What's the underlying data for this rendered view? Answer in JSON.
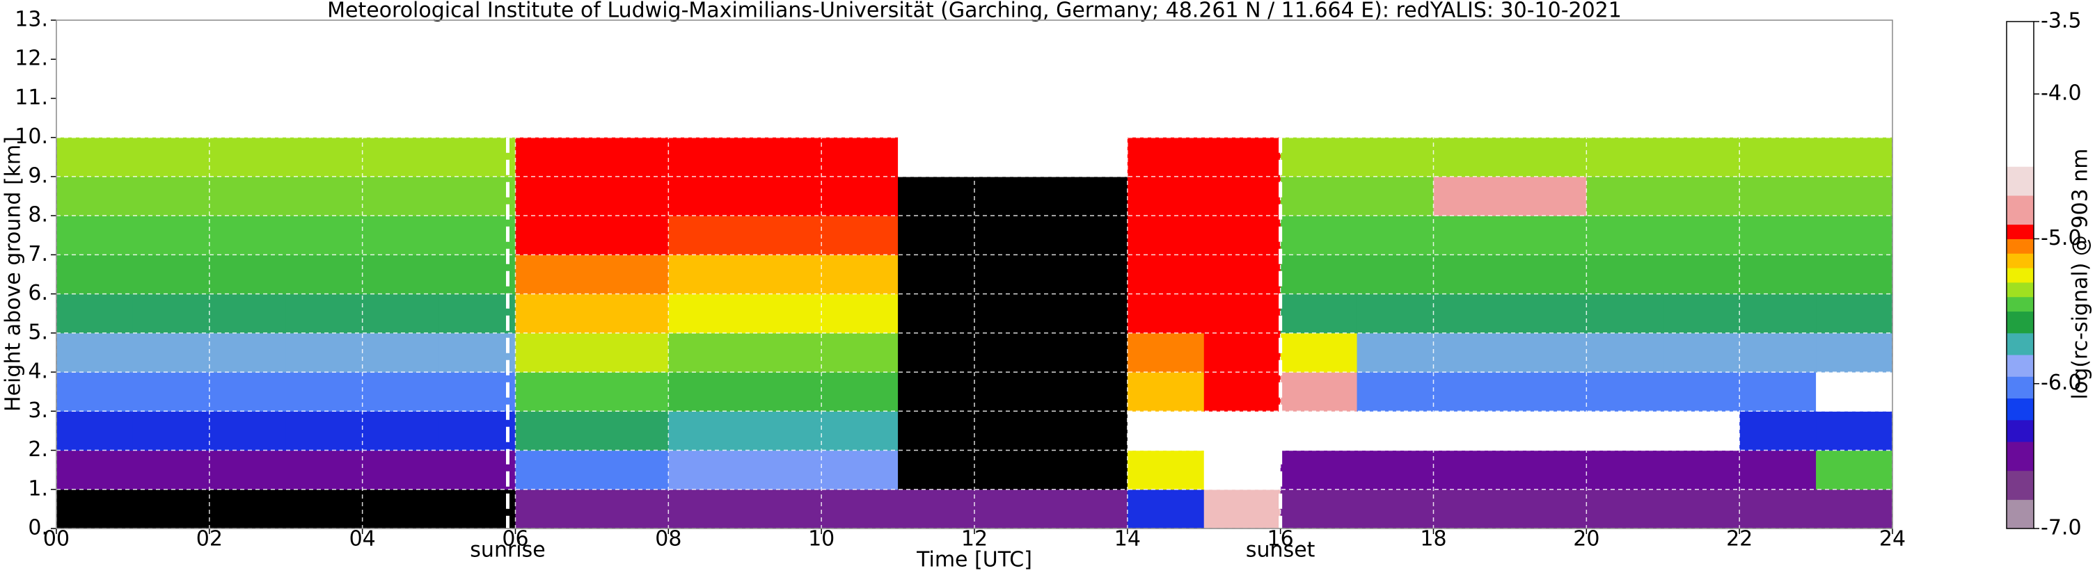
{
  "chart_data": {
    "type": "heatmap",
    "title": "Meteorological Institute of Ludwig-Maximilians-Universität (Garching, Germany; 48.261 N / 11.664 E):    redYALIS: 30-10-2021",
    "xlabel": "Time [UTC]",
    "ylabel": "Height above ground [km]",
    "colorbar_label": "log(rc-signal) @ 903 nm",
    "xlim": [
      0,
      24
    ],
    "ylim": [
      0,
      13
    ],
    "xticks": [
      {
        "value": 0,
        "label": "00"
      },
      {
        "value": 2,
        "label": "02"
      },
      {
        "value": 4,
        "label": "04"
      },
      {
        "value": 6,
        "label": "06"
      },
      {
        "value": 8,
        "label": "08"
      },
      10,
      12,
      14,
      16,
      18,
      20,
      22,
      24
    ],
    "yticks": [
      {
        "value": 0,
        "label": "0."
      },
      {
        "value": 1,
        "label": "1."
      },
      {
        "value": 2,
        "label": "2."
      },
      {
        "value": 3,
        "label": "3."
      },
      {
        "value": 4,
        "label": "4."
      },
      {
        "value": 5,
        "label": "5."
      },
      {
        "value": 6,
        "label": "6."
      },
      {
        "value": 7,
        "label": "7."
      },
      {
        "value": 8,
        "label": "8."
      },
      {
        "value": 9,
        "label": "9."
      },
      {
        "value": 10,
        "label": "10."
      },
      {
        "value": 11,
        "label": "11."
      },
      {
        "value": 12,
        "label": "12."
      },
      {
        "value": 13,
        "label": "13."
      }
    ],
    "grid": true,
    "xbins": [
      0,
      1,
      2,
      3,
      4,
      5,
      6,
      7,
      8,
      9,
      10,
      11,
      12,
      13,
      14,
      15,
      16,
      17,
      18,
      19,
      20,
      21,
      22,
      23,
      24
    ],
    "ybins": [
      0,
      1,
      2,
      3,
      4,
      5,
      6,
      7,
      8,
      9,
      10
    ],
    "z": [
      [
        -7.2,
        -7.2,
        -7.2,
        -7.2,
        -7.2,
        -7.2,
        -6.7,
        -6.7,
        -6.7,
        -6.7,
        -6.7,
        -6.7,
        -6.7,
        -6.7,
        -6.3,
        -4.8,
        -6.7,
        -6.7,
        -6.7,
        -6.7,
        -6.7,
        -6.7,
        -6.7,
        -6.7
      ],
      [
        -6.6,
        -6.6,
        -6.6,
        -6.6,
        -6.6,
        -6.6,
        -6.1,
        -6.1,
        -6.0,
        -6.0,
        -6.0,
        -7.1,
        -7.1,
        -7.1,
        -5.3,
        -4.5,
        -6.6,
        -6.6,
        -6.6,
        -6.6,
        -6.6,
        -6.6,
        -6.6,
        -5.5
      ],
      [
        -6.3,
        -6.3,
        -6.3,
        -6.3,
        -6.3,
        -6.3,
        -5.7,
        -5.7,
        -5.8,
        -5.8,
        -5.8,
        -7.1,
        -7.1,
        -7.1,
        -4.0,
        -4.0,
        -4.0,
        -4.0,
        -4.0,
        -4.0,
        -4.0,
        -4.0,
        -6.3,
        -6.3
      ],
      [
        -6.1,
        -6.1,
        -6.1,
        -6.1,
        -6.1,
        -6.1,
        -5.5,
        -5.5,
        -5.55,
        -5.55,
        -5.55,
        -7.1,
        -7.1,
        -7.1,
        -5.2,
        -5.0,
        -4.9,
        -6.1,
        -6.1,
        -6.1,
        -6.1,
        -6.1,
        -6.1,
        -4.0
      ],
      [
        -5.9,
        -5.9,
        -5.9,
        -5.9,
        -5.9,
        -5.9,
        -5.35,
        -5.35,
        -5.45,
        -5.45,
        -5.45,
        -7.1,
        -7.1,
        -7.1,
        -5.1,
        -5.0,
        -5.3,
        -5.9,
        -5.9,
        -5.9,
        -5.9,
        -5.9,
        -5.9,
        -5.9
      ],
      [
        -5.7,
        -5.7,
        -5.7,
        -5.7,
        -5.7,
        -5.7,
        -5.2,
        -5.2,
        -5.3,
        -5.3,
        -5.3,
        -7.1,
        -7.1,
        -7.1,
        -5.0,
        -5.0,
        -5.7,
        -5.7,
        -5.7,
        -5.7,
        -5.7,
        -5.7,
        -5.7,
        -5.7
      ],
      [
        -5.55,
        -5.55,
        -5.55,
        -5.55,
        -5.55,
        -5.55,
        -5.1,
        -5.1,
        -5.2,
        -5.2,
        -5.2,
        -7.1,
        -7.1,
        -7.1,
        -5.0,
        -5.0,
        -5.55,
        -5.55,
        -5.55,
        -5.55,
        -5.55,
        -5.55,
        -5.55,
        -5.55
      ],
      [
        -5.5,
        -5.5,
        -5.5,
        -5.5,
        -5.5,
        -5.5,
        -5.0,
        -5.0,
        -5.05,
        -5.05,
        -5.05,
        -7.1,
        -7.1,
        -7.1,
        -5.0,
        -5.0,
        -5.5,
        -5.5,
        -5.5,
        -5.5,
        -5.5,
        -5.5,
        -5.5,
        -5.5
      ],
      [
        -5.45,
        -5.45,
        -5.45,
        -5.45,
        -5.45,
        -5.45,
        -5.0,
        -5.0,
        -5.0,
        -5.0,
        -5.0,
        -7.1,
        -7.1,
        -7.1,
        -5.0,
        -5.0,
        -5.45,
        -5.45,
        -4.9,
        -4.9,
        -5.45,
        -5.45,
        -5.45,
        -5.45
      ],
      [
        -5.4,
        -5.4,
        -5.4,
        -5.4,
        -5.4,
        -5.4,
        -5.0,
        -5.0,
        -5.0,
        -5.0,
        -5.0,
        -3.6,
        -3.6,
        -3.6,
        -5.0,
        -5.0,
        -5.4,
        -5.4,
        -5.4,
        -5.4,
        -5.4,
        -5.4,
        -5.4,
        -5.4
      ]
    ],
    "zlim": [
      -7.0,
      -3.5
    ],
    "zticks": [
      {
        "value": -7.0,
        "label": "-7.0"
      },
      {
        "value": -6.0,
        "label": "-6.0"
      },
      {
        "value": -5.0,
        "label": "-5.0"
      },
      {
        "value": -4.0,
        "label": "-4.0"
      },
      -3.5
    ],
    "colorscale": [
      {
        "value": -7.0,
        "color": "#a890a8"
      },
      {
        "value": -6.8,
        "color": "#7a3a8a"
      },
      {
        "value": -6.6,
        "color": "#6a0a9a"
      },
      {
        "value": -6.4,
        "color": "#2a10c8"
      },
      {
        "value": -6.25,
        "color": "#1040f0"
      },
      {
        "value": -6.1,
        "color": "#5080f8"
      },
      {
        "value": -5.95,
        "color": "#90a8f8"
      },
      {
        "value": -5.8,
        "color": "#40b0b0"
      },
      {
        "value": -5.65,
        "color": "#20a040"
      },
      {
        "value": -5.5,
        "color": "#50c840"
      },
      {
        "value": -5.4,
        "color": "#a0e020"
      },
      {
        "value": -5.3,
        "color": "#f0f000"
      },
      {
        "value": -5.2,
        "color": "#ffc000"
      },
      {
        "value": -5.1,
        "color": "#ff8000"
      },
      {
        "value": -5.0,
        "color": "#ff0000"
      },
      {
        "value": -4.9,
        "color": "#f0a0a0"
      },
      {
        "value": -4.7,
        "color": "#f0dada"
      },
      {
        "value": -4.5,
        "color": "#ffffff"
      },
      {
        "value": -3.5,
        "color": "#ffffff"
      }
    ],
    "under_color": "#000000",
    "over_color": "#ffffff",
    "annotations": [
      {
        "x": 5.9,
        "label": "sunrise"
      },
      {
        "x": 16.0,
        "label": "sunset"
      }
    ]
  }
}
